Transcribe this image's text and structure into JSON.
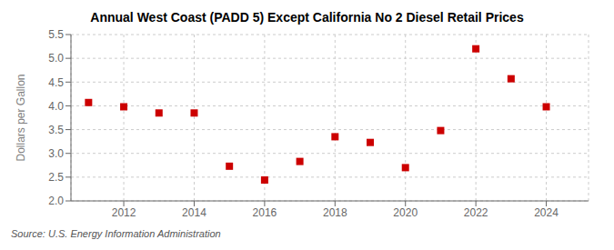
{
  "chart_data": {
    "type": "scatter",
    "title": "Annual West Coast (PADD 5) Except California No 2 Diesel Retail Prices",
    "y_label": "Dollars per Gallon",
    "source": "Source: U.S. Energy Information Administration",
    "x": [
      2011,
      2012,
      2013,
      2014,
      2015,
      2016,
      2017,
      2018,
      2019,
      2020,
      2021,
      2022,
      2023,
      2024
    ],
    "values": [
      4.07,
      3.98,
      3.85,
      3.85,
      2.73,
      2.44,
      2.83,
      3.35,
      3.23,
      2.7,
      3.48,
      5.2,
      4.57,
      3.98
    ],
    "color": "#cc0000",
    "marker": "square",
    "xlim": [
      2010.5,
      2025.2
    ],
    "ylim": [
      2.0,
      5.5
    ],
    "xticks": [
      2012,
      2014,
      2016,
      2018,
      2020,
      2022,
      2024
    ],
    "yticks": [
      {
        "value": 2.0,
        "label": "2.0"
      },
      2.5,
      {
        "value": 3.0,
        "label": "3.0"
      },
      3.5,
      {
        "value": 4.0,
        "label": "4.0"
      },
      4.5,
      {
        "value": 5.0,
        "label": "5.0"
      },
      5.5
    ],
    "grid": true
  }
}
